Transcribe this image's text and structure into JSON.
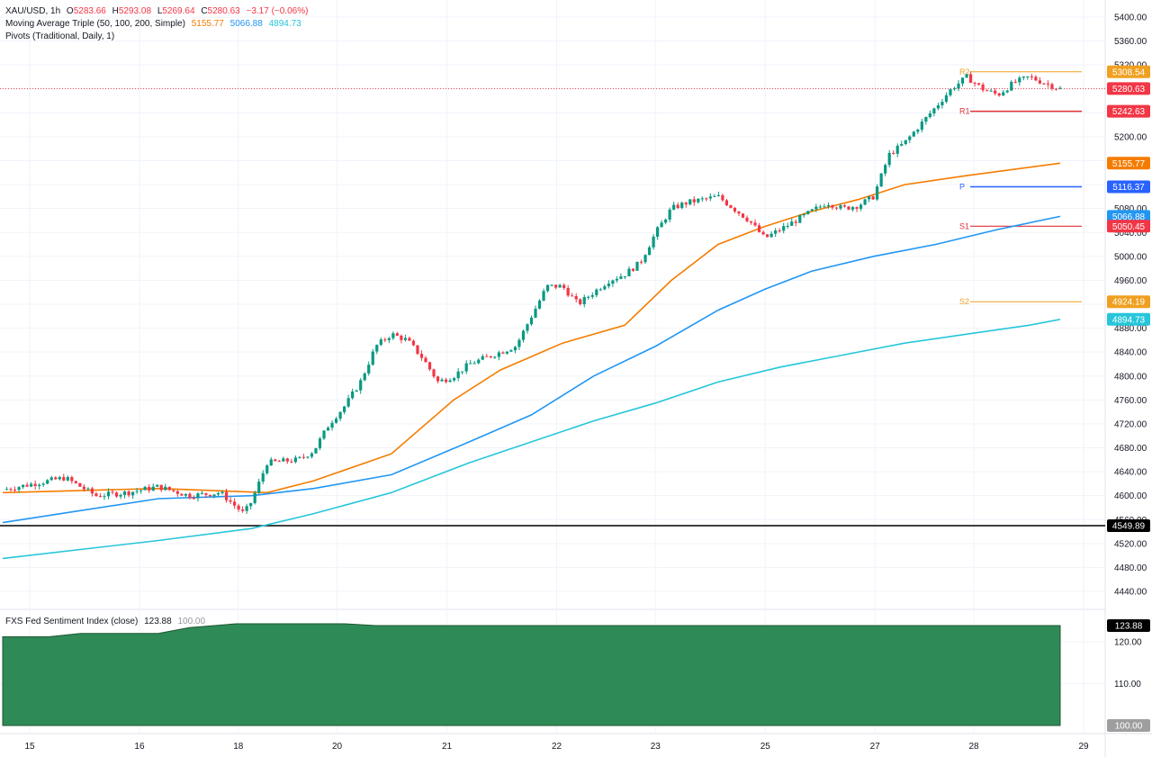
{
  "header": {
    "symbol": "XAU/USD, 1h",
    "open_label": "O",
    "open": "5283.66",
    "high_label": "H",
    "high": "5293.08",
    "low_label": "L",
    "low": "5269.64",
    "close_label": "C",
    "close": "5280.63",
    "change": "−3.17 (−0.06%)",
    "ma_label": "Moving Average Triple (50, 100, 200, Simple)",
    "ma50": "5155.77",
    "ma100": "5066.88",
    "ma200": "4894.73",
    "pivots_label": "Pivots (Traditional, Daily, 1)"
  },
  "sub_header": {
    "label": "FXS Fed Sentiment Index (close)",
    "value": "123.88",
    "ref": "100.00"
  },
  "colors": {
    "up": "#089981",
    "down": "#f23645",
    "ma50": "#f57c00",
    "ma100": "#2196f3",
    "ma200": "#26c6da",
    "pivot_p": "#2962ff",
    "r2": "#f0a020",
    "r1": "#e0303a",
    "area": "#2e8b57"
  },
  "chart_data": [
    {
      "type": "line",
      "title": "XAU/USD, 1h",
      "x": [
        "15",
        "16",
        "18",
        "20",
        "21",
        "22",
        "23",
        "25",
        "27",
        "28",
        "29"
      ],
      "y_ticks": [
        "5400.00",
        "5360.00",
        "5320.00",
        "5280.00",
        "5240.00",
        "5200.00",
        "5160.00",
        "5120.00",
        "5080.00",
        "5040.00",
        "5000.00",
        "4960.00",
        "4920.00",
        "4880.00",
        "4840.00",
        "4800.00",
        "4760.00",
        "4720.00",
        "4680.00",
        "4640.00",
        "4600.00",
        "4560.00",
        "4520.00",
        "4480.00",
        "4440.00"
      ],
      "ylim": [
        4420,
        5420
      ],
      "price_path": [
        [
          0,
          4610
        ],
        [
          4,
          4630
        ],
        [
          6,
          4600
        ],
        [
          8,
          4605
        ],
        [
          10,
          4615
        ],
        [
          12,
          4600
        ],
        [
          14,
          4605
        ],
        [
          15.5,
          4570
        ],
        [
          16,
          4590
        ],
        [
          17,
          4655
        ],
        [
          19,
          4660
        ],
        [
          20,
          4675
        ],
        [
          21,
          4720
        ],
        [
          22,
          4750
        ],
        [
          23,
          4790
        ],
        [
          24,
          4850
        ],
        [
          25,
          4870
        ],
        [
          26,
          4860
        ],
        [
          27,
          4830
        ],
        [
          28,
          4790
        ],
        [
          29,
          4800
        ],
        [
          30,
          4820
        ],
        [
          31,
          4830
        ],
        [
          32,
          4840
        ],
        [
          33,
          4850
        ],
        [
          34,
          4900
        ],
        [
          35,
          4950
        ],
        [
          36,
          4950
        ],
        [
          37,
          4920
        ],
        [
          38,
          4940
        ],
        [
          39,
          4960
        ],
        [
          40,
          4970
        ],
        [
          41,
          4990
        ],
        [
          42,
          5040
        ],
        [
          43,
          5080
        ],
        [
          44,
          5090
        ],
        [
          45,
          5095
        ],
        [
          46,
          5100
        ],
        [
          47,
          5080
        ],
        [
          48,
          5060
        ],
        [
          49,
          5030
        ],
        [
          50,
          5045
        ],
        [
          51,
          5060
        ],
        [
          52,
          5075
        ],
        [
          53,
          5090
        ],
        [
          54,
          5080
        ],
        [
          55,
          5085
        ],
        [
          56,
          5100
        ],
        [
          57,
          5170
        ],
        [
          58,
          5190
        ],
        [
          59,
          5220
        ],
        [
          60,
          5250
        ],
        [
          61,
          5280
        ],
        [
          62,
          5300
        ],
        [
          63,
          5280
        ],
        [
          64,
          5270
        ],
        [
          65,
          5290
        ],
        [
          66,
          5300
        ],
        [
          67,
          5290
        ],
        [
          68,
          5280
        ]
      ],
      "series": [
        {
          "name": "50",
          "last": 5155.77,
          "values": [
            [
              0,
              4605
            ],
            [
              10,
              4612
            ],
            [
              17,
              4605
            ],
            [
              20,
              4625
            ],
            [
              25,
              4670
            ],
            [
              29,
              4760
            ],
            [
              32,
              4810
            ],
            [
              36,
              4855
            ],
            [
              40,
              4885
            ],
            [
              43,
              4960
            ],
            [
              46,
              5020
            ],
            [
              49,
              5050
            ],
            [
              52,
              5075
            ],
            [
              55,
              5095
            ],
            [
              58,
              5120
            ],
            [
              62,
              5135
            ],
            [
              68,
              5155.77
            ]
          ]
        },
        {
          "name": "100",
          "last": 5066.88,
          "values": [
            [
              0,
              4555
            ],
            [
              10,
              4595
            ],
            [
              16,
              4600
            ],
            [
              20,
              4612
            ],
            [
              25,
              4635
            ],
            [
              30,
              4690
            ],
            [
              34,
              4735
            ],
            [
              38,
              4800
            ],
            [
              42,
              4850
            ],
            [
              46,
              4910
            ],
            [
              49,
              4945
            ],
            [
              52,
              4975
            ],
            [
              56,
              5000
            ],
            [
              60,
              5020
            ],
            [
              64,
              5045
            ],
            [
              68,
              5066.88
            ]
          ]
        },
        {
          "name": "200",
          "last": 4894.73,
          "values": [
            [
              0,
              4495
            ],
            [
              10,
              4525
            ],
            [
              16,
              4545
            ],
            [
              20,
              4570
            ],
            [
              25,
              4605
            ],
            [
              30,
              4655
            ],
            [
              34,
              4690
            ],
            [
              38,
              4725
            ],
            [
              42,
              4755
            ],
            [
              46,
              4790
            ],
            [
              50,
              4815
            ],
            [
              54,
              4835
            ],
            [
              58,
              4855
            ],
            [
              62,
              4870
            ],
            [
              66,
              4885
            ],
            [
              68,
              4894.73
            ]
          ]
        }
      ],
      "pivots": [
        {
          "name": "R2",
          "value": 5308.54
        },
        {
          "name": "R1",
          "value": 5242.63
        },
        {
          "name": "P",
          "value": 5116.37
        },
        {
          "name": "S1",
          "value": 5050.45
        },
        {
          "name": "S2",
          "value": 4924.19
        }
      ],
      "last_price": 5280.63,
      "support_line": 4549.89
    },
    {
      "type": "area",
      "title": "FXS Fed Sentiment Index (close)",
      "y_ticks": [
        "120.00",
        "110.00",
        "100.00"
      ],
      "ylim": [
        100,
        125
      ],
      "values": [
        [
          0,
          121.2
        ],
        [
          3,
          121.2
        ],
        [
          5,
          122.0
        ],
        [
          10,
          122.0
        ],
        [
          12,
          123.4
        ],
        [
          15,
          124.3
        ],
        [
          22,
          124.3
        ],
        [
          24,
          123.88
        ],
        [
          68,
          123.88
        ]
      ],
      "last": 123.88,
      "baseline": 100.0
    }
  ],
  "tags": {
    "r2": "5308.54",
    "last": "5280.63",
    "r1": "5242.63",
    "ma50": "5155.77",
    "p": "5116.37",
    "ma100": "5066.88",
    "s1": "5050.45",
    "s2": "4924.19",
    "ma200": "4894.73",
    "support": "4549.89",
    "fxs": "123.88",
    "fxs_base": "100.00"
  },
  "x_labels": [
    "15",
    "16",
    "18",
    "20",
    "21",
    "22",
    "23",
    "25",
    "27",
    "28",
    "29"
  ]
}
